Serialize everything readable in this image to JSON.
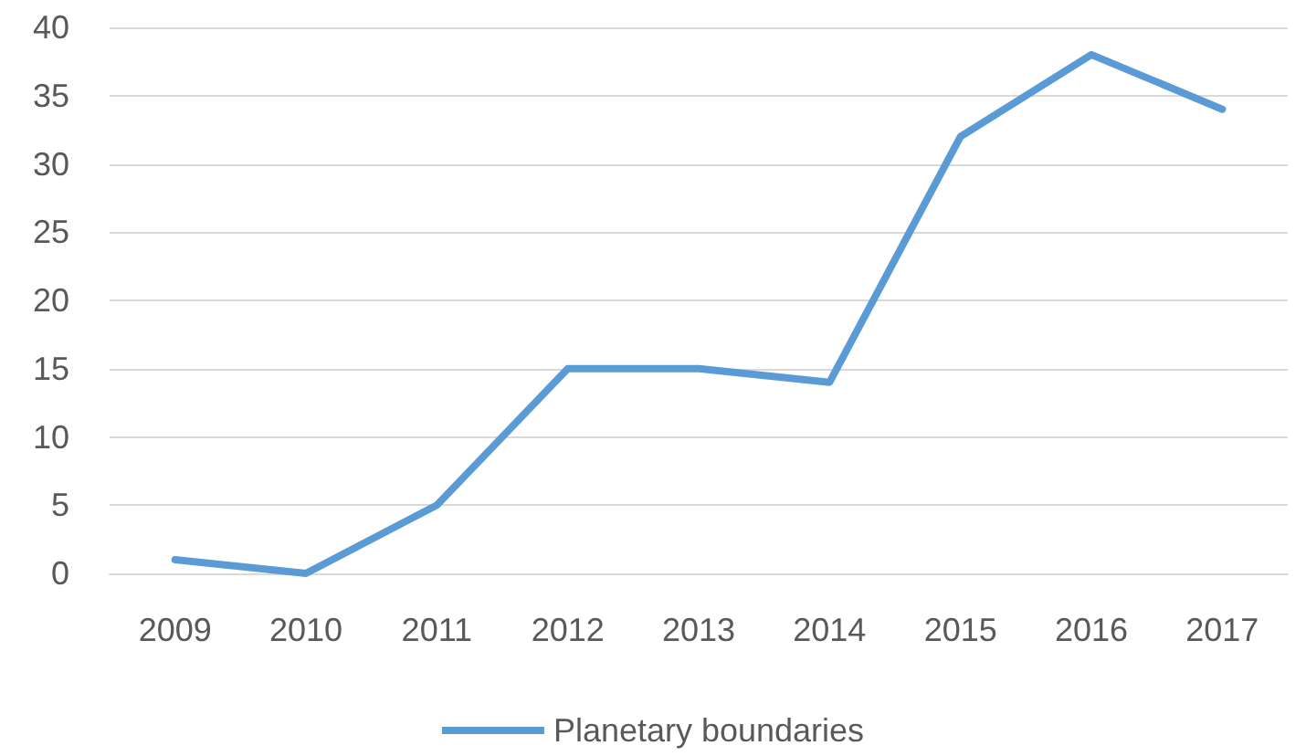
{
  "chart_data": {
    "type": "line",
    "categories": [
      "2009",
      "2010",
      "2011",
      "2012",
      "2013",
      "2014",
      "2015",
      "2016",
      "2017"
    ],
    "series": [
      {
        "name": "Planetary boundaries",
        "color": "#5b9bd5",
        "values": [
          1,
          0,
          5,
          15,
          15,
          14,
          32,
          38,
          34
        ]
      }
    ],
    "ylim": [
      0,
      40
    ],
    "yticks": [
      0,
      5,
      10,
      15,
      20,
      25,
      30,
      35,
      40
    ],
    "grid": "y",
    "legend": "bottom",
    "marker": "none",
    "line_style": "solid"
  }
}
